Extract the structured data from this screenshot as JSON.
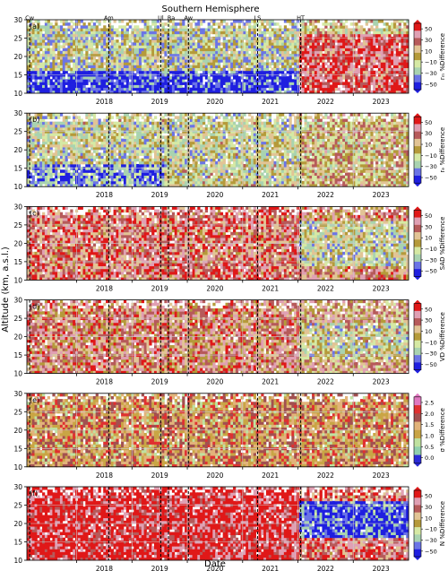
{
  "figure": {
    "title": "Southern Hemisphere",
    "xlabel": "Date",
    "ylabel": "Altitude (km, a.s.l.)"
  },
  "events": [
    {
      "label": "Cw",
      "date": 2017.15
    },
    {
      "label": "Am",
      "date": 2018.58
    },
    {
      "label": "Ul",
      "date": 2019.52
    },
    {
      "label": "Ra",
      "date": 2019.66
    },
    {
      "label": "Aw",
      "date": 2020.02
    },
    {
      "label": "LS",
      "date": 2021.27
    },
    {
      "label": "HT",
      "date": 2022.05
    }
  ],
  "colors": {
    "diverging": [
      "#1f1fe0",
      "#6b74e6",
      "#a9d3b0",
      "#d6e9a4",
      "#b59a3a",
      "#e2c495",
      "#b65a5a",
      "#e0a0b3",
      "#e01818"
    ],
    "sequential": [
      "#2b2bd8",
      "#8fd0ae",
      "#bfe2a0",
      "#c9a545",
      "#e2b37a",
      "#a25050",
      "#e03030",
      "#e078c0"
    ],
    "grid": "#cccccc"
  },
  "chart_data": [
    {
      "type": "heatmap",
      "panel": "(a)",
      "cbar_label": "rₘ %Difference",
      "xlim": [
        2017.1,
        2024.0
      ],
      "ylim": [
        10,
        30
      ],
      "x_ticks": [
        "2018",
        "2019",
        "2020",
        "2021",
        "2022",
        "2023"
      ],
      "y_ticks": [
        "10",
        "15",
        "20",
        "25",
        "30"
      ],
      "cbar_ticks": [
        "50",
        "30",
        "10",
        "−10",
        "−30",
        "−50"
      ],
      "cbar_range": [
        -50,
        50
      ],
      "palette": "diverging",
      "mean_difference": -8.0,
      "regimes": [
        {
          "date": [
            2017.1,
            2022.0
          ],
          "altitude": [
            10,
            16
          ],
          "value": -45
        },
        {
          "date": [
            2017.1,
            2022.0
          ],
          "altitude": [
            16,
            30
          ],
          "value": -12
        },
        {
          "date": [
            2022.0,
            2024.0
          ],
          "altitude": [
            10,
            26
          ],
          "value": 35
        },
        {
          "date": [
            2022.0,
            2024.0
          ],
          "altitude": [
            26,
            30
          ],
          "value": 0
        }
      ]
    },
    {
      "type": "heatmap",
      "panel": "(b)",
      "cbar_label": "rₑ %Difference",
      "xlim": [
        2017.1,
        2024.0
      ],
      "ylim": [
        10,
        30
      ],
      "x_ticks": [
        "2018",
        "2019",
        "2020",
        "2021",
        "2022",
        "2023"
      ],
      "y_ticks": [
        "10",
        "15",
        "20",
        "25",
        "30"
      ],
      "cbar_ticks": [
        "50",
        "30",
        "10",
        "−10",
        "−30",
        "−50"
      ],
      "cbar_range": [
        -50,
        50
      ],
      "palette": "diverging",
      "mean_difference": -5.0,
      "regimes": [
        {
          "date": [
            2017.1,
            2019.6
          ],
          "altitude": [
            10,
            16
          ],
          "value": -30
        },
        {
          "date": [
            2017.1,
            2022.0
          ],
          "altitude": [
            16,
            30
          ],
          "value": -8
        },
        {
          "date": [
            2022.0,
            2024.0
          ],
          "altitude": [
            10,
            30
          ],
          "value": 5
        }
      ]
    },
    {
      "type": "heatmap",
      "panel": "(c)",
      "cbar_label": "SAD %Difference",
      "xlim": [
        2017.1,
        2024.0
      ],
      "ylim": [
        10,
        30
      ],
      "x_ticks": [
        "2018",
        "2019",
        "2020",
        "2021",
        "2022",
        "2023"
      ],
      "y_ticks": [
        "10",
        "15",
        "20",
        "25",
        "30"
      ],
      "cbar_ticks": [
        "50",
        "30",
        "10",
        "−10",
        "−30",
        "−50"
      ],
      "cbar_range": [
        -50,
        50
      ],
      "palette": "diverging",
      "mean_difference": 20.0,
      "regimes": [
        {
          "date": [
            2017.1,
            2022.0
          ],
          "altitude": [
            10,
            30
          ],
          "value": 28
        },
        {
          "date": [
            2022.0,
            2024.0
          ],
          "altitude": [
            14,
            26
          ],
          "value": -8
        }
      ]
    },
    {
      "type": "heatmap",
      "panel": "(d)",
      "cbar_label": "VD %Difference",
      "xlim": [
        2017.1,
        2024.0
      ],
      "ylim": [
        10,
        30
      ],
      "x_ticks": [
        "2018",
        "2019",
        "2020",
        "2021",
        "2022",
        "2023"
      ],
      "y_ticks": [
        "10",
        "15",
        "20",
        "25",
        "30"
      ],
      "cbar_ticks": [
        "50",
        "30",
        "10",
        "−10",
        "−30",
        "−50"
      ],
      "cbar_range": [
        -50,
        50
      ],
      "palette": "diverging",
      "mean_difference": 12.0,
      "regimes": [
        {
          "date": [
            2017.1,
            2022.0
          ],
          "altitude": [
            10,
            30
          ],
          "value": 22
        },
        {
          "date": [
            2022.0,
            2024.0
          ],
          "altitude": [
            14,
            24
          ],
          "value": -5
        }
      ]
    },
    {
      "type": "heatmap",
      "panel": "(e)",
      "cbar_label": "σ %Difference",
      "xlim": [
        2017.1,
        2024.0
      ],
      "ylim": [
        10,
        30
      ],
      "x_ticks": [
        "2018",
        "2019",
        "2020",
        "2021",
        "2022",
        "2023"
      ],
      "y_ticks": [
        "10",
        "15",
        "20",
        "25",
        "30"
      ],
      "cbar_ticks": [
        "2.5",
        "2.0",
        "1.5",
        "1.0",
        "0.5",
        "0.0"
      ],
      "cbar_range": [
        0,
        2.75
      ],
      "palette": "sequential",
      "mean_difference": 1.5,
      "regimes": [
        {
          "date": [
            2017.1,
            2024.0
          ],
          "altitude": [
            10,
            30
          ],
          "value": 1.6
        }
      ]
    },
    {
      "type": "heatmap",
      "panel": "(f)",
      "cbar_label": "N %Difference",
      "xlim": [
        2017.1,
        2024.0
      ],
      "ylim": [
        10,
        30
      ],
      "x_ticks": [
        "2018",
        "2019",
        "2020",
        "2021",
        "2022",
        "2023"
      ],
      "y_ticks": [
        "10",
        "15",
        "20",
        "25",
        "30"
      ],
      "cbar_ticks": [
        "50",
        "30",
        "10",
        "−10",
        "−30",
        "−50"
      ],
      "cbar_range": [
        -50,
        50
      ],
      "palette": "diverging",
      "mean_difference": 30.0,
      "regimes": [
        {
          "date": [
            2017.1,
            2022.0
          ],
          "altitude": [
            10,
            30
          ],
          "value": 45
        },
        {
          "date": [
            2022.0,
            2024.0
          ],
          "altitude": [
            10,
            16
          ],
          "value": 30
        },
        {
          "date": [
            2022.0,
            2024.0
          ],
          "altitude": [
            16,
            26
          ],
          "value": -40
        }
      ]
    }
  ]
}
